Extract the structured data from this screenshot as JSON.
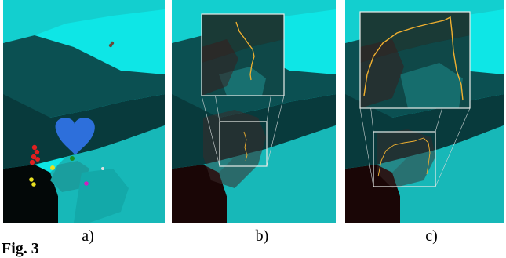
{
  "panels": [
    {
      "label": "a)"
    },
    {
      "label": "b)"
    },
    {
      "label": "c)"
    }
  ],
  "figure_label": "Fig. 3",
  "colors": {
    "cyan": "#0ee6e6",
    "teal": "#17b8b8",
    "teal_mid": "#1a9e9e",
    "dark_teal": "#0b5052",
    "darker_teal": "#083a3c",
    "black": "#030808",
    "blob_blue": "#2d6fdb",
    "red": "#e02020",
    "yellow": "#e8e020",
    "green": "#1e8c1e",
    "magenta": "#d020c0",
    "trace_orange": "#f0b030",
    "frame_white": "#e8ece8"
  }
}
